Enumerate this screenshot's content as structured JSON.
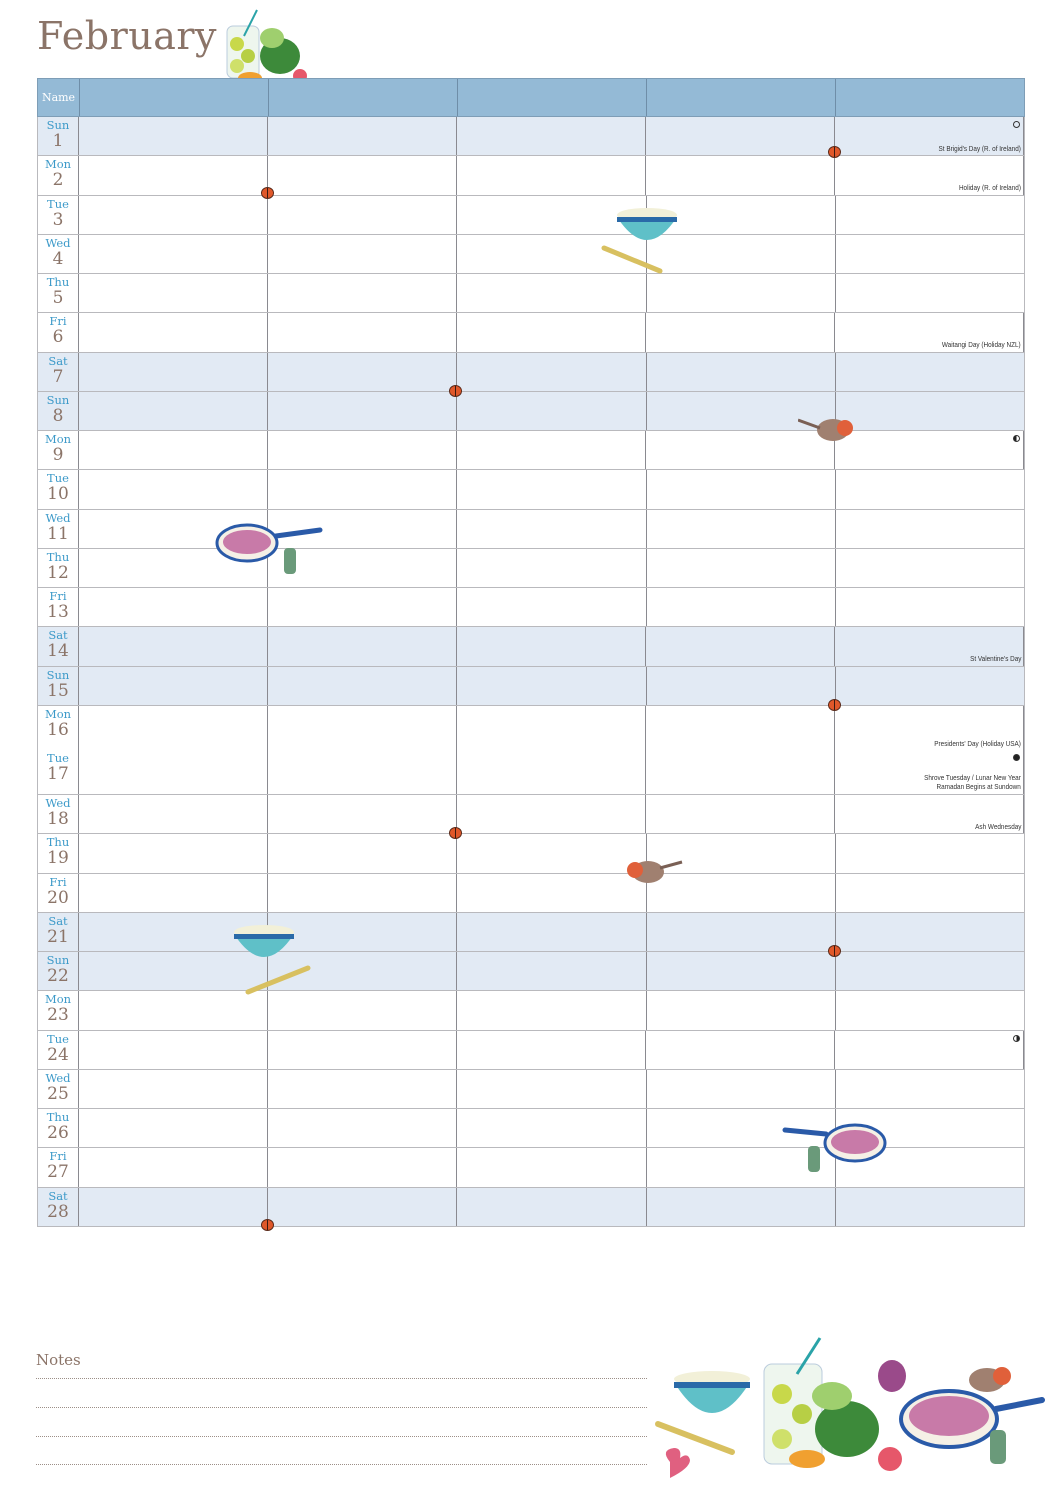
{
  "page": {
    "title": "February"
  },
  "grid": {
    "name_label": "Name",
    "columns": 5
  },
  "days": [
    {
      "day": "Sun",
      "date": "1",
      "event": "St Brigid's Day (R. of Ireland)",
      "moon": "full"
    },
    {
      "day": "Mon",
      "date": "2",
      "event": "Holiday (R. of Ireland)"
    },
    {
      "day": "Tue",
      "date": "3"
    },
    {
      "day": "Wed",
      "date": "4"
    },
    {
      "day": "Thu",
      "date": "5"
    },
    {
      "day": "Fri",
      "date": "6",
      "event": "Waitangi Day (Holiday NZL)"
    },
    {
      "day": "Sat",
      "date": "7"
    },
    {
      "day": "Sun",
      "date": "8"
    },
    {
      "day": "Mon",
      "date": "9",
      "moon": "last"
    },
    {
      "day": "Tue",
      "date": "10"
    },
    {
      "day": "Wed",
      "date": "11"
    },
    {
      "day": "Thu",
      "date": "12"
    },
    {
      "day": "Fri",
      "date": "13"
    },
    {
      "day": "Sat",
      "date": "14",
      "event": "St Valentine's Day"
    },
    {
      "day": "Sun",
      "date": "15"
    },
    {
      "day": "Mon",
      "date": "16",
      "event": "Presidents' Day (Holiday USA)"
    },
    {
      "day": "Tue",
      "date": "17",
      "event": "Shrove Tuesday / Lunar New Year\nRamadan Begins at Sundown",
      "moon": "new"
    },
    {
      "day": "Wed",
      "date": "18",
      "event": "Ash Wednesday"
    },
    {
      "day": "Thu",
      "date": "19"
    },
    {
      "day": "Fri",
      "date": "20"
    },
    {
      "day": "Sat",
      "date": "21"
    },
    {
      "day": "Sun",
      "date": "22"
    },
    {
      "day": "Mon",
      "date": "23"
    },
    {
      "day": "Tue",
      "date": "24",
      "moon": "first"
    },
    {
      "day": "Wed",
      "date": "25"
    },
    {
      "day": "Thu",
      "date": "26"
    },
    {
      "day": "Fri",
      "date": "27"
    },
    {
      "day": "Sat",
      "date": "28"
    }
  ],
  "notes": {
    "title": "Notes",
    "lines": 4
  },
  "colors": {
    "header": "#94bad6",
    "weekend": "#e2eaf4",
    "dayname": "#3d9ac9",
    "title": "#8b7468"
  }
}
